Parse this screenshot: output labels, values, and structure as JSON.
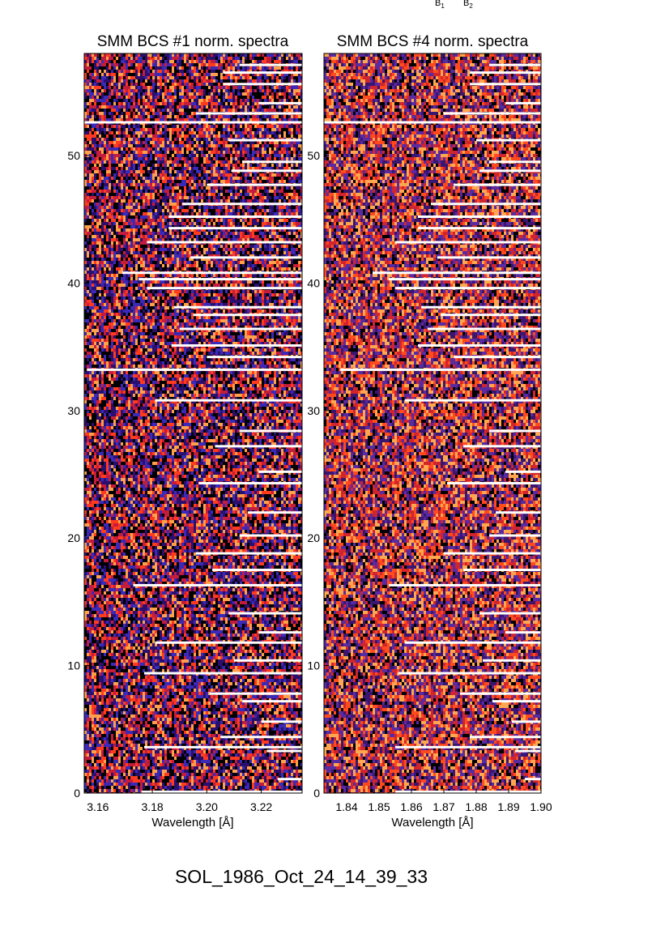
{
  "header_labels": {
    "b1": "B",
    "b1_sub": "1",
    "b2": "B",
    "b2_sub": "2"
  },
  "footer": {
    "event_id": "SOL_1986_Oct_24_14_39_33"
  },
  "chart_data": [
    {
      "type": "heatmap",
      "title": "SMM BCS #1 norm. spectra",
      "xlabel": "Wavelength [Å]",
      "ylabel": "",
      "xlim": [
        3.155,
        3.235
      ],
      "ylim": [
        0,
        58
      ],
      "xticks": [
        "3.16",
        "3.18",
        "3.20",
        "3.22"
      ],
      "xtick_values": [
        3.16,
        3.18,
        3.2,
        3.22
      ],
      "yticks": [
        "0",
        "10",
        "20",
        "30",
        "40",
        "50"
      ],
      "ytick_values": [
        0,
        10,
        20,
        30,
        40,
        50
      ],
      "colormap": [
        "#000000",
        "#2a0f6e",
        "#3b2ab8",
        "#c31c3c",
        "#ff3a1e",
        "#ffa04a"
      ],
      "gap_fill_color": "#ffffff",
      "gap_rows": [
        {
          "y": 0.1,
          "x_start": 3.176
        },
        {
          "y": 1.1,
          "x_start": 3.226
        },
        {
          "y": 3.3,
          "x_start": 3.222
        },
        {
          "y": 3.6,
          "x_start": 3.177
        },
        {
          "y": 4.4,
          "x_start": 3.205
        },
        {
          "y": 5.6,
          "x_start": 3.22
        },
        {
          "y": 7.2,
          "x_start": 3.213
        },
        {
          "y": 7.8,
          "x_start": 3.201
        },
        {
          "y": 9.4,
          "x_start": 3.177
        },
        {
          "y": 10.4,
          "x_start": 3.21
        },
        {
          "y": 11.8,
          "x_start": 3.181
        },
        {
          "y": 12.6,
          "x_start": 3.219
        },
        {
          "y": 14.1,
          "x_start": 3.208
        },
        {
          "y": 16.3,
          "x_start": 3.173
        },
        {
          "y": 17.5,
          "x_start": 3.202
        },
        {
          "y": 18.8,
          "x_start": 3.196
        },
        {
          "y": 20.2,
          "x_start": 3.212
        },
        {
          "y": 22.0,
          "x_start": 3.215
        },
        {
          "y": 24.3,
          "x_start": 3.197
        },
        {
          "y": 25.2,
          "x_start": 3.219
        },
        {
          "y": 27.2,
          "x_start": 3.203
        },
        {
          "y": 28.4,
          "x_start": 3.212
        },
        {
          "y": 30.8,
          "x_start": 3.181
        },
        {
          "y": 33.2,
          "x_start": 3.156
        },
        {
          "y": 34.2,
          "x_start": 3.2
        },
        {
          "y": 35.1,
          "x_start": 3.187
        },
        {
          "y": 36.4,
          "x_start": 3.19
        },
        {
          "y": 37.5,
          "x_start": 3.195
        },
        {
          "y": 38.1,
          "x_start": 3.188
        },
        {
          "y": 39.6,
          "x_start": 3.178
        },
        {
          "y": 40.3,
          "x_start": 3.175
        },
        {
          "y": 40.8,
          "x_start": 3.169
        },
        {
          "y": 42.0,
          "x_start": 3.194
        },
        {
          "y": 43.2,
          "x_start": 3.178
        },
        {
          "y": 44.3,
          "x_start": 3.186
        },
        {
          "y": 45.2,
          "x_start": 3.186
        },
        {
          "y": 46.2,
          "x_start": 3.191
        },
        {
          "y": 47.7,
          "x_start": 3.2
        },
        {
          "y": 48.8,
          "x_start": 3.209
        },
        {
          "y": 49.5,
          "x_start": 3.213
        },
        {
          "y": 51.2,
          "x_start": 3.208
        },
        {
          "y": 52.6,
          "x_start": 3.155
        },
        {
          "y": 53.3,
          "x_start": 3.196
        },
        {
          "y": 54.1,
          "x_start": 3.219
        },
        {
          "y": 55.6,
          "x_start": 3.206
        },
        {
          "y": 56.5,
          "x_start": 3.206
        },
        {
          "y": 57.1,
          "x_start": 3.212
        }
      ]
    },
    {
      "type": "heatmap",
      "title": "SMM BCS #4 norm. spectra",
      "xlabel": "Wavelength [Å]",
      "ylabel": "",
      "xlim": [
        1.833,
        1.9
      ],
      "ylim": [
        0,
        58
      ],
      "xticks": [
        "1.84",
        "1.85",
        "1.86",
        "1.87",
        "1.88",
        "1.89",
        "1.90"
      ],
      "xtick_values": [
        1.84,
        1.85,
        1.86,
        1.87,
        1.88,
        1.89,
        1.9
      ],
      "yticks": [
        "0",
        "10",
        "20",
        "30",
        "40",
        "50"
      ],
      "ytick_values": [
        0,
        10,
        20,
        30,
        40,
        50
      ],
      "colormap": [
        "#000000",
        "#3a1670",
        "#5a2aa0",
        "#d0242e",
        "#ff4a1e",
        "#ffa650"
      ],
      "gap_fill_color": "#ffffff",
      "gap_rows": [
        {
          "y": 0.1,
          "x_start": 1.855
        },
        {
          "y": 1.1,
          "x_start": 1.895
        },
        {
          "y": 3.3,
          "x_start": 1.892
        },
        {
          "y": 3.6,
          "x_start": 1.855
        },
        {
          "y": 4.4,
          "x_start": 1.878
        },
        {
          "y": 5.6,
          "x_start": 1.891
        },
        {
          "y": 7.2,
          "x_start": 1.885
        },
        {
          "y": 7.8,
          "x_start": 1.875
        },
        {
          "y": 9.4,
          "x_start": 1.856
        },
        {
          "y": 10.4,
          "x_start": 1.882
        },
        {
          "y": 11.8,
          "x_start": 1.858
        },
        {
          "y": 12.6,
          "x_start": 1.889
        },
        {
          "y": 14.1,
          "x_start": 1.881
        },
        {
          "y": 16.3,
          "x_start": 1.853
        },
        {
          "y": 17.5,
          "x_start": 1.876
        },
        {
          "y": 18.8,
          "x_start": 1.87
        },
        {
          "y": 20.2,
          "x_start": 1.884
        },
        {
          "y": 22.0,
          "x_start": 1.886
        },
        {
          "y": 24.3,
          "x_start": 1.871
        },
        {
          "y": 25.2,
          "x_start": 1.889
        },
        {
          "y": 27.2,
          "x_start": 1.876
        },
        {
          "y": 28.4,
          "x_start": 1.884
        },
        {
          "y": 30.8,
          "x_start": 1.858
        },
        {
          "y": 33.2,
          "x_start": 1.838
        },
        {
          "y": 34.2,
          "x_start": 1.873
        },
        {
          "y": 35.1,
          "x_start": 1.862
        },
        {
          "y": 36.4,
          "x_start": 1.865
        },
        {
          "y": 37.5,
          "x_start": 1.869
        },
        {
          "y": 38.1,
          "x_start": 1.863
        },
        {
          "y": 39.6,
          "x_start": 1.855
        },
        {
          "y": 40.3,
          "x_start": 1.853
        },
        {
          "y": 40.8,
          "x_start": 1.848
        },
        {
          "y": 42.0,
          "x_start": 1.868
        },
        {
          "y": 43.2,
          "x_start": 1.855
        },
        {
          "y": 44.3,
          "x_start": 1.862
        },
        {
          "y": 45.2,
          "x_start": 1.862
        },
        {
          "y": 46.2,
          "x_start": 1.866
        },
        {
          "y": 47.7,
          "x_start": 1.873
        },
        {
          "y": 48.8,
          "x_start": 1.881
        },
        {
          "y": 49.5,
          "x_start": 1.884
        },
        {
          "y": 51.2,
          "x_start": 1.88
        },
        {
          "y": 52.6,
          "x_start": 1.833
        },
        {
          "y": 53.3,
          "x_start": 1.87
        },
        {
          "y": 54.1,
          "x_start": 1.889
        },
        {
          "y": 55.6,
          "x_start": 1.878
        },
        {
          "y": 56.5,
          "x_start": 1.878
        },
        {
          "y": 57.1,
          "x_start": 1.884
        }
      ]
    }
  ]
}
